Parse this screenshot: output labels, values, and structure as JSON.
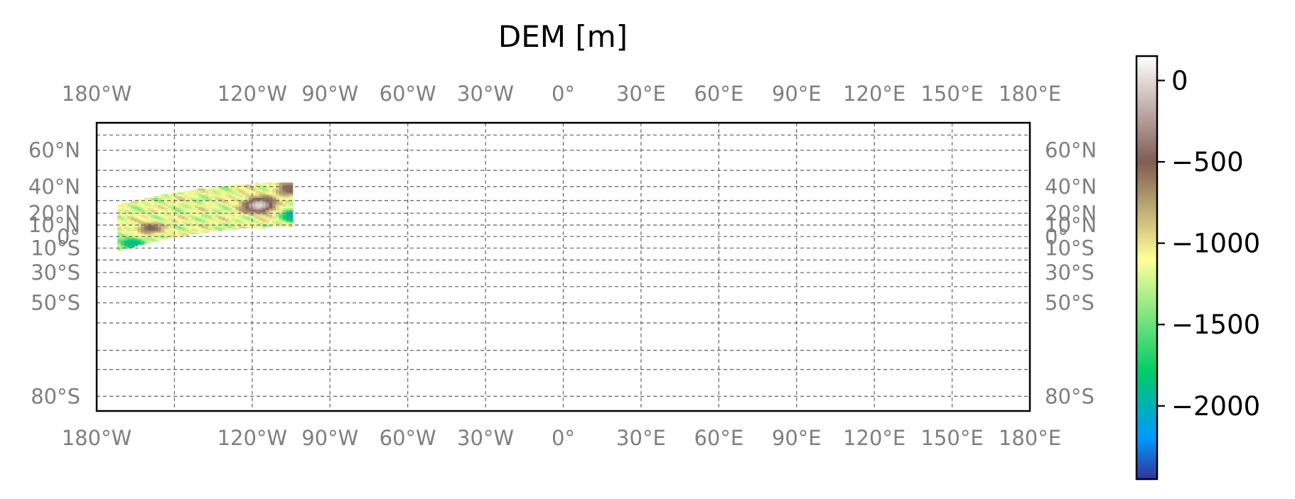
{
  "chart_data": {
    "type": "heatmap",
    "title": "DEM [m]",
    "map": {
      "projection": "equirectangular-stretched",
      "lon_range": [
        -180,
        180
      ],
      "lat_range": [
        -82,
        70
      ],
      "lon_ticks": [
        {
          "value": -180,
          "label": "180°W"
        },
        {
          "value": -120,
          "label": "120°W"
        },
        {
          "value": -90,
          "label": "90°W"
        },
        {
          "value": -60,
          "label": "60°W"
        },
        {
          "value": -30,
          "label": "30°W"
        },
        {
          "value": 0,
          "label": "0°"
        },
        {
          "value": 30,
          "label": "30°E"
        },
        {
          "value": 60,
          "label": "60°E"
        },
        {
          "value": 90,
          "label": "90°E"
        },
        {
          "value": 120,
          "label": "120°E"
        },
        {
          "value": 150,
          "label": "150°E"
        },
        {
          "value": 180,
          "label": "180°E"
        }
      ],
      "lon_grid_extra": [
        -150
      ],
      "lat_ticks": [
        {
          "value": 60,
          "label": "60°N"
        },
        {
          "value": 40,
          "label": "40°N"
        },
        {
          "value": 20,
          "label": "20°N"
        },
        {
          "value": 10,
          "label": "10°N"
        },
        {
          "value": 0,
          "label": "0°"
        },
        {
          "value": -10,
          "label": "10°S"
        },
        {
          "value": -30,
          "label": "30°S"
        },
        {
          "value": -50,
          "label": "50°S"
        },
        {
          "value": -80,
          "label": "80°S"
        }
      ],
      "lat_grid_extra": [
        66,
        50,
        30,
        -20,
        -40,
        -60,
        -70,
        -75
      ],
      "grid": true,
      "tick_labels_on": [
        "top",
        "bottom",
        "left",
        "right"
      ],
      "data_region": {
        "center_lon": -105,
        "center_lat": -110,
        "inner_radius_deg": 118,
        "outer_radius_deg": 152,
        "lon_extent": [
          -172,
          -101
        ],
        "lat_extent": [
          -12,
          45
        ],
        "features": [
          {
            "lon": -118,
            "lat": 26,
            "elevation": 0,
            "note": "peak"
          },
          {
            "lon": -106,
            "lat": 38,
            "elevation": -450
          },
          {
            "lon": -104,
            "lat": 18,
            "elevation": -2200
          },
          {
            "lon": -167,
            "lat": -6,
            "elevation": -1950
          },
          {
            "lon": -160,
            "lat": 7,
            "elevation": -500
          }
        ]
      }
    },
    "colorbar": {
      "label": "",
      "vmin": -2450,
      "vmax": 150,
      "colormap": "terrain",
      "position": "right",
      "ticks": [
        {
          "value": 0,
          "label": "0"
        },
        {
          "value": -500,
          "label": "−500"
        },
        {
          "value": -1000,
          "label": "−1000"
        },
        {
          "value": -1500,
          "label": "−1500"
        },
        {
          "value": -2000,
          "label": "−2000"
        }
      ],
      "color_stops": [
        {
          "value": -2450,
          "color": "#333399"
        },
        {
          "value": -2200,
          "color": "#0099ff"
        },
        {
          "value": -1790,
          "color": "#00cc66"
        },
        {
          "value": -1100,
          "color": "#ffff99"
        },
        {
          "value": -500,
          "color": "#805c54"
        },
        {
          "value": 150,
          "color": "#ffffff"
        }
      ]
    }
  }
}
